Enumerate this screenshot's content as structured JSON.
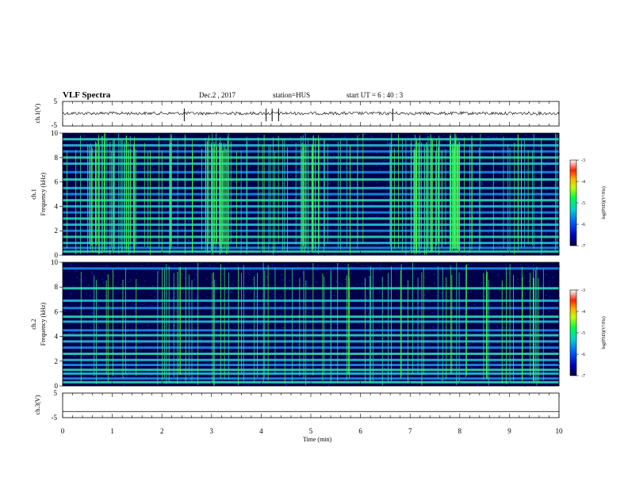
{
  "header": {
    "title": "VLF Spectra",
    "date": "Dec.2 , 2017",
    "station": "station=HUS",
    "start": "start UT = 6 : 40 : 3"
  },
  "colors": {
    "background_dark": "#00004a",
    "band": "#2bd6d6",
    "burst": "#44ff44",
    "axis": "#000000"
  },
  "chart_data": [
    {
      "type": "line",
      "panel": "ch1-waveform",
      "ylabel": "ch.1(V)",
      "ylim": [
        -5,
        5
      ],
      "yticks": [
        "5",
        "-5"
      ],
      "series_description_level": 0,
      "spikes_min": [
        2.45,
        4.1,
        4.22,
        4.35,
        6.65
      ]
    },
    {
      "type": "heatmap",
      "panel": "ch1-spectrogram",
      "ylabel": "ch.1\nFrequency (kHz)",
      "ylim": [
        0,
        10
      ],
      "yticks": [
        "0",
        "2",
        "4",
        "6",
        "8",
        "10"
      ],
      "bands_khz": [
        0.3,
        0.6,
        1.0,
        1.5,
        2.0,
        2.5,
        3.0,
        3.5,
        4.0,
        4.5,
        5.0,
        5.5,
        6.2,
        6.8,
        7.5,
        8.0,
        8.5,
        9.0,
        9.5
      ],
      "burst_regions_min": [
        [
          0.5,
          1.5
        ],
        [
          2.9,
          3.4
        ],
        [
          4.8,
          5.3
        ],
        [
          7.0,
          7.6
        ],
        [
          7.8,
          8.0
        ]
      ],
      "colorbar": {
        "label": "log(PSD)(V²/Hz)",
        "ticks": [
          "-3",
          "-4",
          "-5",
          "-6",
          "-7"
        ]
      }
    },
    {
      "type": "heatmap",
      "panel": "ch2-spectrogram",
      "ylabel": "ch.2\nFrequency (kHz)",
      "ylim": [
        0,
        10
      ],
      "yticks": [
        "0",
        "2",
        "4",
        "6",
        "8",
        "10"
      ],
      "bands_khz": [
        0.3,
        0.6,
        1.0,
        1.3,
        1.7,
        2.1,
        2.6,
        3.1,
        3.6,
        4.1,
        4.5,
        5.2,
        5.6,
        6.3,
        6.9,
        7.9,
        9.5
      ],
      "burst_region_min": [
        0.3,
        9.8
      ],
      "colorbar": {
        "label": "log(PSD)(V²/Hz)",
        "ticks": [
          "-3",
          "-4",
          "-5",
          "-6",
          "-7"
        ]
      }
    },
    {
      "type": "line",
      "panel": "ch3-waveform",
      "ylabel": "ch.3(V)",
      "ylim": [
        -5,
        5
      ],
      "yticks": [
        "5",
        "-5"
      ],
      "level": -2.5
    },
    {
      "type": "axis",
      "panel": "time-axis",
      "xlabel": "Time (min)",
      "xlim": [
        0,
        10
      ],
      "xticks": [
        "0",
        "1",
        "2",
        "3",
        "4",
        "5",
        "6",
        "7",
        "8",
        "9",
        "10"
      ]
    }
  ]
}
